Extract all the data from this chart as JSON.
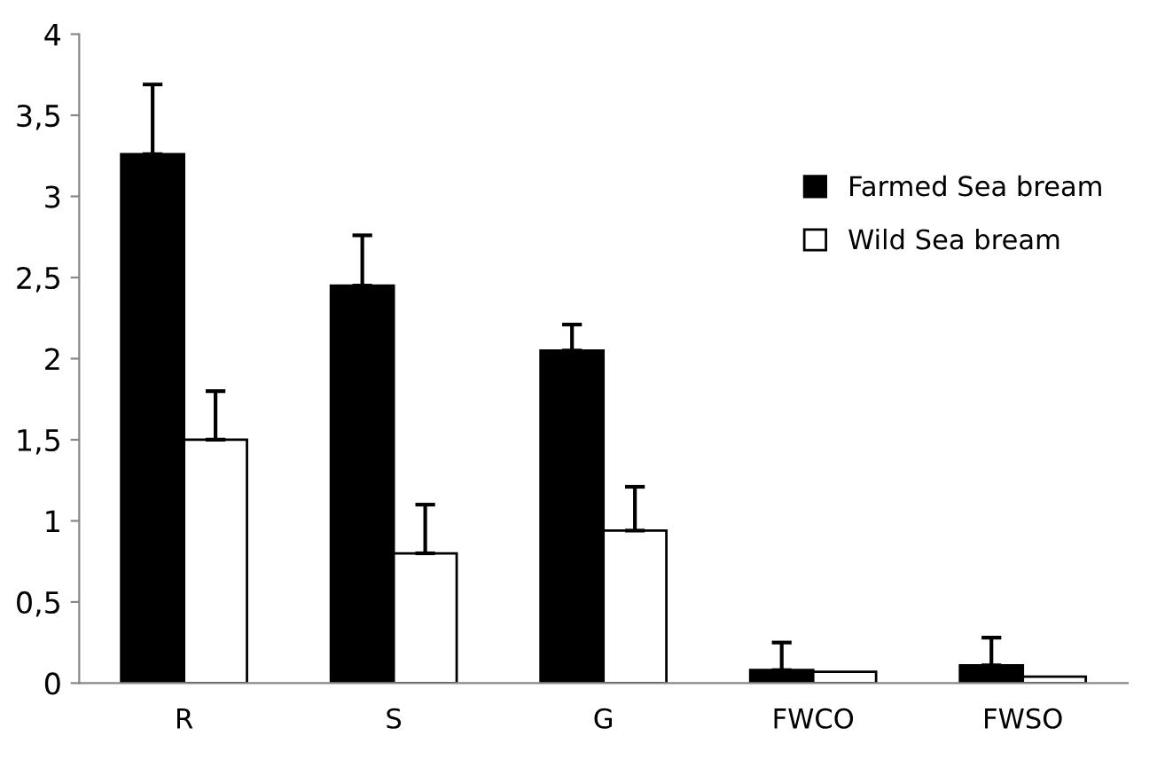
{
  "chart_data": {
    "type": "bar",
    "categories": [
      "R",
      "S",
      "G",
      "FWCO",
      "FWSO"
    ],
    "series": [
      {
        "name": "Farmed Sea bream",
        "color": "#000000",
        "values": [
          3.26,
          2.45,
          2.05,
          0.08,
          0.11
        ],
        "errors": [
          [
            3.26,
            3.69
          ],
          [
            2.45,
            2.76
          ],
          [
            2.05,
            2.21
          ],
          [
            0.08,
            0.25
          ],
          [
            0.11,
            0.28
          ]
        ]
      },
      {
        "name": "Wild Sea bream",
        "color": "#ffffff",
        "values": [
          1.5,
          0.8,
          0.94,
          0.07,
          0.04
        ],
        "errors": [
          [
            1.5,
            1.8
          ],
          [
            0.8,
            1.1
          ],
          [
            0.94,
            1.21
          ],
          null,
          null
        ]
      }
    ],
    "ylim": [
      0,
      4
    ],
    "yticks": [
      0,
      {
        "value": 0.5,
        "label": "0,5"
      },
      1,
      {
        "value": 1.5,
        "label": "1,5"
      },
      2,
      {
        "value": 2.5,
        "label": "2,5"
      },
      3,
      {
        "value": 3.5,
        "label": "3,5"
      },
      4
    ],
    "grid": false,
    "legend": "top right"
  }
}
